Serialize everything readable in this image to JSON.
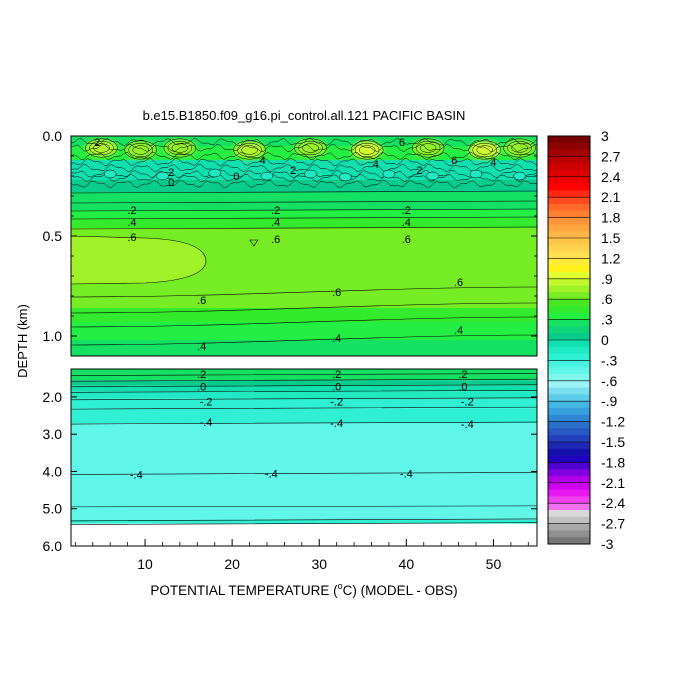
{
  "chart_data": {
    "type": "heatmap",
    "title": "b.e15.B1850.f09_g16.pi_control.all.121 PACIFIC BASIN",
    "xlabel_pre": "POTENTIAL TEMPERATURE (",
    "xlabel_sup": "o",
    "xlabel_post": "C) (MODEL - OBS)",
    "ylabel": "DEPTH (km)",
    "xlim": [
      1.5,
      55
    ],
    "x_ticks": [
      10,
      20,
      30,
      40,
      50
    ],
    "x_tick_labels": [
      "10",
      "20",
      "30",
      "40",
      "50"
    ],
    "upper_panel": {
      "ylim": [
        0.0,
        1.1
      ],
      "y_ticks": [
        0.0,
        0.5,
        1.0
      ],
      "y_tick_labels": [
        "0.0",
        "0.5",
        "1.0"
      ],
      "bands": [
        {
          "top": 0.0,
          "bottom": 0.05,
          "value": 0.2
        },
        {
          "top": 0.05,
          "bottom": 0.12,
          "value": 0.35
        },
        {
          "top": 0.12,
          "bottom": 0.22,
          "value": 0.0
        },
        {
          "top": 0.22,
          "bottom": 0.28,
          "value": 0.1
        },
        {
          "top": 0.28,
          "bottom": 0.33,
          "value": 0.2
        },
        {
          "top": 0.33,
          "bottom": 0.37,
          "value": 0.3
        },
        {
          "top": 0.37,
          "bottom": 0.41,
          "value": 0.4
        },
        {
          "top": 0.41,
          "bottom": 0.46,
          "value": 0.5
        },
        {
          "top": 0.46,
          "bottom": 0.78,
          "value": 0.7
        },
        {
          "top": 0.78,
          "bottom": 0.86,
          "value": 0.6
        },
        {
          "top": 0.86,
          "bottom": 0.93,
          "value": 0.5
        },
        {
          "top": 0.93,
          "bottom": 1.02,
          "value": 0.4
        },
        {
          "top": 1.02,
          "bottom": 1.1,
          "value": 0.3
        }
      ],
      "hotspots": [
        {
          "x": 5.0,
          "y": 0.06,
          "value": 0.9
        },
        {
          "x": 9.5,
          "y": 0.07,
          "value": 0.75
        },
        {
          "x": 14.0,
          "y": 0.06,
          "value": 0.8
        },
        {
          "x": 22.0,
          "y": 0.07,
          "value": 0.9
        },
        {
          "x": 29.0,
          "y": 0.06,
          "value": 0.75
        },
        {
          "x": 35.5,
          "y": 0.07,
          "value": 0.95
        },
        {
          "x": 42.5,
          "y": 0.06,
          "value": 0.8
        },
        {
          "x": 49.0,
          "y": 0.07,
          "value": 0.95
        },
        {
          "x": 53.0,
          "y": 0.06,
          "value": 0.75
        }
      ],
      "yellow_patch": {
        "x_end": 17.0,
        "y_top": 0.5,
        "y_bottom": 0.78,
        "value": 0.8
      },
      "contour_labels": [
        {
          "x": 4.5,
          "y": 0.03,
          "text": "2"
        },
        {
          "x": 23.5,
          "y": 0.12,
          "text": "4"
        },
        {
          "x": 27.0,
          "y": 0.17,
          "text": "2"
        },
        {
          "x": 36.5,
          "y": 0.14,
          "text": "4"
        },
        {
          "x": 39.5,
          "y": 0.03,
          "text": "6"
        },
        {
          "x": 41.5,
          "y": 0.17,
          "text": "2"
        },
        {
          "x": 45.5,
          "y": 0.12,
          "text": "6"
        },
        {
          "x": 50.0,
          "y": 0.13,
          "text": "4"
        },
        {
          "x": 13.0,
          "y": 0.18,
          "text": "2"
        },
        {
          "x": 13.0,
          "y": 0.23,
          "text": "0"
        },
        {
          "x": 20.5,
          "y": 0.2,
          "text": "0"
        },
        {
          "x": 8.5,
          "y": 0.37,
          "text": ".2"
        },
        {
          "x": 8.5,
          "y": 0.43,
          "text": ".4"
        },
        {
          "x": 8.5,
          "y": 0.505,
          "text": ".6"
        },
        {
          "x": 25.0,
          "y": 0.37,
          "text": ".2"
        },
        {
          "x": 25.0,
          "y": 0.43,
          "text": ".4"
        },
        {
          "x": 25.0,
          "y": 0.515,
          "text": ".6"
        },
        {
          "x": 40.0,
          "y": 0.37,
          "text": ".2"
        },
        {
          "x": 40.0,
          "y": 0.43,
          "text": ".4"
        },
        {
          "x": 40.0,
          "y": 0.515,
          "text": ".6"
        },
        {
          "x": 16.5,
          "y": 0.82,
          "text": ".6"
        },
        {
          "x": 32.0,
          "y": 0.78,
          "text": ".6"
        },
        {
          "x": 46.0,
          "y": 0.73,
          "text": ".6"
        },
        {
          "x": 16.5,
          "y": 1.05,
          "text": ".4"
        },
        {
          "x": 32.0,
          "y": 1.01,
          "text": ".4"
        },
        {
          "x": 46.0,
          "y": 0.97,
          "text": ".4"
        }
      ]
    },
    "lower_panel": {
      "ylim": [
        1.25,
        6.0
      ],
      "y_ticks": [
        2.0,
        3.0,
        4.0,
        5.0,
        6.0
      ],
      "y_tick_labels": [
        "2.0",
        "3.0",
        "4.0",
        "5.0",
        "6.0"
      ],
      "bands": [
        {
          "top": 1.25,
          "bottom": 1.4,
          "value": 0.3
        },
        {
          "top": 1.4,
          "bottom": 1.55,
          "value": 0.2
        },
        {
          "top": 1.55,
          "bottom": 1.7,
          "value": 0.1
        },
        {
          "top": 1.7,
          "bottom": 1.85,
          "value": 0.0
        },
        {
          "top": 1.85,
          "bottom": 2.05,
          "value": -0.1
        },
        {
          "top": 2.05,
          "bottom": 2.3,
          "value": -0.2
        },
        {
          "top": 2.3,
          "bottom": 2.7,
          "value": -0.3
        },
        {
          "top": 2.7,
          "bottom": 5.3,
          "value": -0.45
        },
        {
          "top": 5.3,
          "bottom": 5.4,
          "value": -0.25
        }
      ],
      "contour_labels": [
        {
          "x": 16.5,
          "y": 1.38,
          "text": ".2"
        },
        {
          "x": 32.0,
          "y": 1.38,
          "text": ".2"
        },
        {
          "x": 46.5,
          "y": 1.38,
          "text": ".2"
        },
        {
          "x": 16.5,
          "y": 1.72,
          "text": ".0"
        },
        {
          "x": 32.0,
          "y": 1.72,
          "text": ".0"
        },
        {
          "x": 46.5,
          "y": 1.72,
          "text": ".0"
        },
        {
          "x": 17.0,
          "y": 2.12,
          "text": "-.2"
        },
        {
          "x": 32.0,
          "y": 2.12,
          "text": "-.2"
        },
        {
          "x": 47.0,
          "y": 2.12,
          "text": "-.2"
        },
        {
          "x": 17.0,
          "y": 2.67,
          "text": "-.4"
        },
        {
          "x": 32.0,
          "y": 2.7,
          "text": "-.4"
        },
        {
          "x": 47.0,
          "y": 2.72,
          "text": "-.4"
        },
        {
          "x": 9.0,
          "y": 4.08,
          "text": "-.4"
        },
        {
          "x": 24.5,
          "y": 4.05,
          "text": "-.4"
        },
        {
          "x": 40.0,
          "y": 4.05,
          "text": "-.4"
        }
      ]
    },
    "colorbar": {
      "levels": [
        3,
        2.7,
        2.4,
        2.1,
        1.8,
        1.5,
        1.2,
        0.9,
        0.6,
        0.3,
        0,
        -0.3,
        -0.6,
        -0.9,
        -1.2,
        -1.5,
        -1.8,
        -2.1,
        -2.4,
        -2.7,
        -3
      ],
      "labels": [
        "3",
        "2.7",
        "2.4",
        "2.1",
        "1.8",
        "1.5",
        "1.2",
        ".9",
        ".6",
        ".3",
        "0",
        "-.3",
        "-.6",
        "-.9",
        "-1.2",
        "-1.5",
        "-1.8",
        "-2.1",
        "-2.4",
        "-2.7",
        "-3"
      ],
      "colors": [
        "#7a0000",
        "#8e0000",
        "#a30000",
        "#b80000",
        "#cc0000",
        "#dd0000",
        "#ee0000",
        "#ff0000",
        "#ff2a10",
        "#ff4a20",
        "#ff6a2a",
        "#ff8030",
        "#ff9438",
        "#ffa640",
        "#ffb648",
        "#ffc64a",
        "#ffd44c",
        "#ffe050",
        "#ffec3a",
        "#fff21a",
        "#e4ff30",
        "#c2f82c",
        "#a0f228",
        "#76ec24",
        "#4ae620",
        "#34ea2c",
        "#22ee44",
        "#14e062",
        "#10d478",
        "#08cc8c",
        "#10e0b0",
        "#20eac4",
        "#30f0d4",
        "#44f4e0",
        "#60f6e8",
        "#80f8ee",
        "#9cf2f4",
        "#7ae0f0",
        "#5cccea",
        "#44b6e4",
        "#38a0dc",
        "#3088d4",
        "#2c70cc",
        "#2858c4",
        "#2240bc",
        "#1c28b4",
        "#1410ac",
        "#2000c0",
        "#5000d0",
        "#8000e0",
        "#b000e8",
        "#d000f0",
        "#e818f0",
        "#f040f0",
        "#f070f0",
        "#d8d8d8",
        "#c0c0c0",
        "#a8a8a8",
        "#909090",
        "#787878"
      ]
    }
  }
}
